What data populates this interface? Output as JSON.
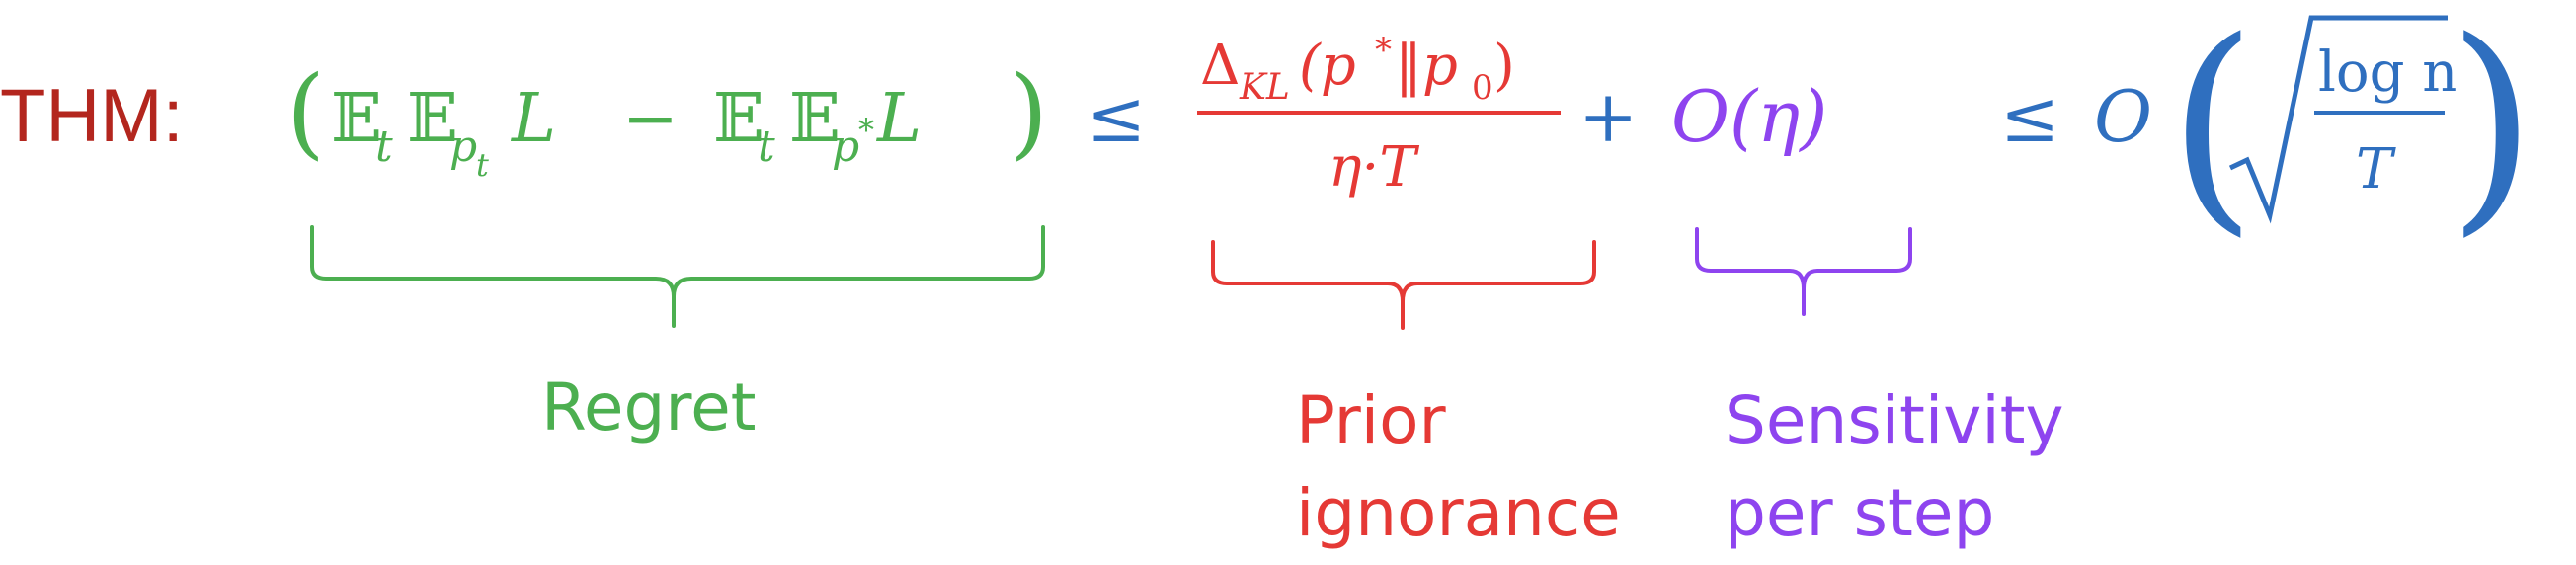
{
  "theorem": {
    "label": "THM:",
    "label_color": "#b3261e"
  },
  "colors": {
    "regret": "#4caf50",
    "prior": "#e53935",
    "sensitivity": "#8e44ef",
    "operator": "#2f6fbf"
  },
  "equation": {
    "regret": {
      "open_paren": "(",
      "close_paren": ")",
      "term1": {
        "bb1": "𝔼",
        "sub1": "t",
        "bb2": "𝔼",
        "sub2_base": "p",
        "sub2_sub": "t",
        "var": "L"
      },
      "minus": "−",
      "term2": {
        "bb1": "𝔼",
        "sub1": "t",
        "bb2": "𝔼",
        "sub2_base": "p",
        "sub2_sup": "*",
        "var": "L"
      }
    },
    "leq1": "≤",
    "prior": {
      "numerator_delta": "Δ",
      "numerator_sub": "KL",
      "numerator_arg_open": "(p",
      "numerator_arg_star": "*",
      "numerator_arg_mid": "‖p",
      "numerator_arg_zero": "0",
      "numerator_arg_close": ")",
      "denominator": "η·T"
    },
    "plus": "+",
    "sensitivity": {
      "text": "O(η)"
    },
    "leq2": "≤",
    "bound": {
      "O": "O",
      "open": "(",
      "close": ")",
      "frac_num": "log n",
      "frac_den": "T"
    }
  },
  "annotations": {
    "regret": "Regret",
    "prior_line1": "Prior",
    "prior_line2": "ignorance",
    "sensitivity_line1": "Sensitivity",
    "sensitivity_line2": "per step"
  }
}
